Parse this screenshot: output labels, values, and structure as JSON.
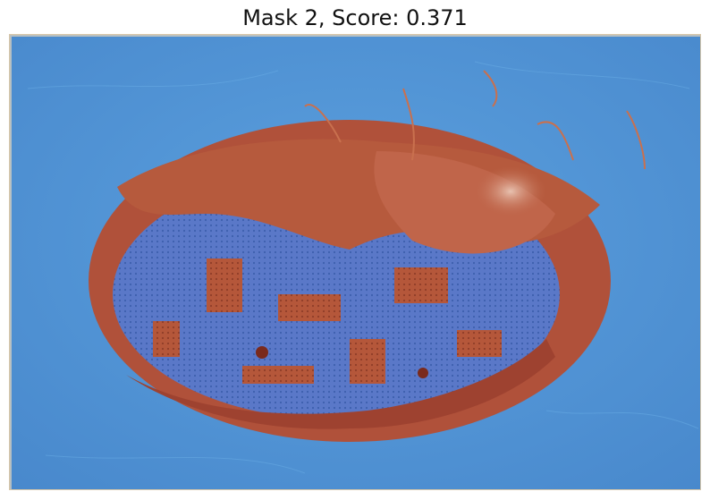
{
  "figure": {
    "title": "Mask 2, Score: 0.371",
    "mask_overlay_color": "#4a7fcf",
    "background_color": "#4e95d6",
    "object_color": "#b5573a",
    "object_highlight_color": "#d8a08a",
    "subject": "reddish-brown oval object on blue surface with blue segmentation mask overlay"
  }
}
